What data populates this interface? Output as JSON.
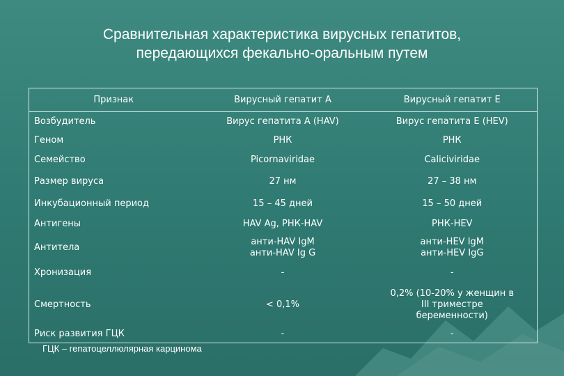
{
  "title": {
    "line1": "Сравнительная характеристика  вирусных гепатитов,",
    "line2": "передающихся фекально-оральным путем"
  },
  "table": {
    "headers": [
      "Признак",
      "Вирусный гепатит А",
      "Вирусный гепатит Е"
    ],
    "rows": [
      [
        "Возбудитель",
        "Вирус гепатита А (HAV)",
        "Вирус гепатита Е (HEV)"
      ],
      [
        "Геном",
        "РНК",
        "РНК"
      ],
      [
        "Семейство",
        "Picornaviridae",
        "Caliciviridae"
      ],
      [
        "Размер вируса",
        "27 нм",
        "27 – 38 нм"
      ],
      [
        "Инкубационный период",
        "15 – 45 дней",
        "15 – 50 дней"
      ],
      [
        "Антигены",
        "HAV Ag, РНК-HAV",
        "РНК-HEV"
      ],
      [
        "Антитела",
        "анти-HAV IgM\nанти-HAV Ig G",
        "анти-HEV IgM\nанти-HEV IgG"
      ],
      [
        "Хронизация",
        "-",
        "-"
      ],
      [
        "Смертность",
        "< 0,1%",
        "0,2% (10-20% у женщин в\nIII триместре\nбеременности)"
      ],
      [
        "Риск развития ГЦК",
        "-",
        "-"
      ]
    ]
  },
  "footnote": "ГЦК – гепатоцеллюлярная карцинома"
}
